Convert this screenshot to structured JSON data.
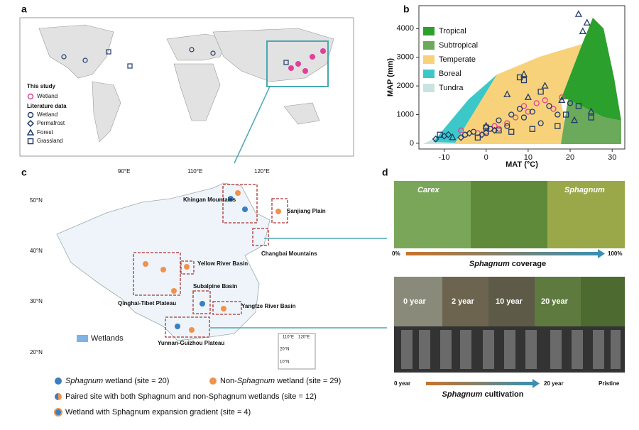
{
  "panel_labels": [
    "a",
    "b",
    "c",
    "d"
  ],
  "panel_a": {
    "this_study": "This study",
    "literature_data": "Literature data"
  },
  "chart_data": {
    "type": "scatter",
    "xlabel": "MAT (°C)",
    "ylabel": "MAP (mm)",
    "xlim": [
      -16,
      33
    ],
    "ylim": [
      -200,
      4800
    ],
    "xticks": [
      -10,
      0,
      10,
      20,
      30
    ],
    "yticks": [
      0,
      1000,
      2000,
      3000,
      4000
    ],
    "regions": [
      {
        "name": "Tropical",
        "color": "#2ca02c"
      },
      {
        "name": "Subtropical",
        "color": "#6aaa5a"
      },
      {
        "name": "Temperate",
        "color": "#f7d27a"
      },
      {
        "name": "Boreal",
        "color": "#3cc8c8"
      },
      {
        "name": "Tundra",
        "color": "#c8e3e0"
      }
    ],
    "series": [
      {
        "name": "Wetland",
        "color": "#e0409a",
        "marker": "circle",
        "x": [
          -6,
          -2,
          0,
          2,
          3,
          5,
          7,
          9,
          10,
          12,
          14,
          16,
          18
        ],
        "values": [
          450,
          350,
          400,
          600,
          500,
          700,
          900,
          1300,
          1100,
          1400,
          1500,
          1200,
          1600
        ]
      },
      {
        "name": "Wetland",
        "color": "#1f3a6b",
        "marker": "circle",
        "x": [
          -5,
          -3,
          0,
          1,
          3,
          5,
          6,
          8,
          9,
          11,
          13,
          15,
          17,
          20
        ],
        "values": [
          300,
          400,
          350,
          500,
          800,
          600,
          1000,
          1200,
          900,
          1100,
          700,
          1300,
          1000,
          1400
        ]
      },
      {
        "name": "Permafrost",
        "color": "#1f3a6b",
        "marker": "diamond",
        "x": [
          -12,
          -10,
          -9,
          -6,
          -4,
          -1,
          2
        ],
        "values": [
          150,
          250,
          300,
          200,
          350,
          300,
          450
        ]
      },
      {
        "name": "Forest",
        "color": "#1f3a6b",
        "marker": "triangle",
        "x": [
          -8,
          0,
          5,
          9,
          10,
          14,
          18,
          22,
          24,
          25,
          23,
          21
        ],
        "values": [
          200,
          600,
          1700,
          2400,
          1600,
          2000,
          1500,
          4500,
          4200,
          1100,
          3900,
          800
        ]
      },
      {
        "name": "Grassland",
        "color": "#1f3a6b",
        "marker": "square",
        "x": [
          -11,
          -2,
          0,
          3,
          6,
          8,
          9,
          11,
          13,
          17,
          19,
          22,
          25
        ],
        "values": [
          300,
          200,
          550,
          450,
          400,
          2300,
          2200,
          500,
          1800,
          600,
          1000,
          1300,
          900
        ]
      }
    ]
  },
  "panel_c": {
    "lon_labels": [
      "90°E",
      "110°E",
      "120°E"
    ],
    "lat_labels": [
      "50°N",
      "40°N",
      "30°N",
      "20°N"
    ],
    "regions": [
      "Khingan Mountains",
      "Sanjiang Plain",
      "Changbai Mountains",
      "Yellow River Basin",
      "Qinghai-Tibet Plateau",
      "Subalpine Basin",
      "Yangtze River Basin",
      "Yunnan-Guizhou Plateau"
    ],
    "wetlands": "Wetlands",
    "inset_labels": [
      "110°E",
      "120°E",
      "20°N",
      "10°N"
    ],
    "legend": [
      {
        "italic": "Sphagnum",
        "text": " wetland (site = 20)"
      },
      {
        "pre": "Non-",
        "italic": "Sphagnum",
        "text": " wetland (site = 29)"
      },
      {
        "text": "Paired site with both Sphagnum and non-Sphagnum wetlands (site = 12)"
      },
      {
        "text": "Wetland with Sphagnum expansion gradient (site = 4)"
      }
    ]
  },
  "panel_d": {
    "photo_labels": [
      "Carex",
      "Sphagnum"
    ],
    "coverage_ends": [
      "0%",
      "100%"
    ],
    "coverage_italic": "Sphagnum",
    "coverage_text": " coverage",
    "year_labels": [
      "0 year",
      "2 year",
      "10 year",
      "20 year"
    ],
    "cultivation_ends": [
      "0 year",
      "20 year",
      "Pristine"
    ],
    "cultivation_italic": "Sphagnum",
    "cultivation_text": " cultivation"
  }
}
